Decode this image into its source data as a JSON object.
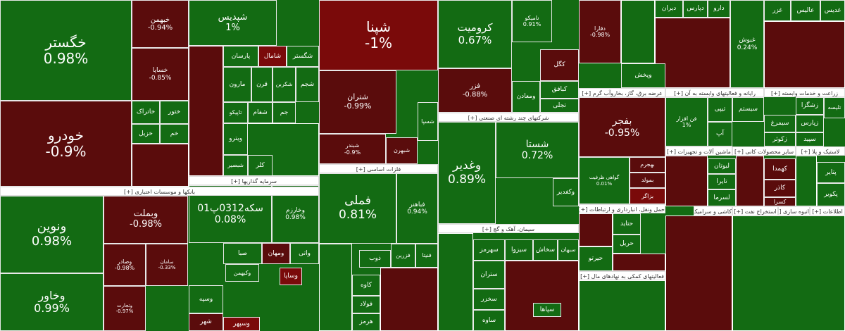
{
  "tiles": [
    {
      "label": "خگستر",
      "change": "0.98%",
      "color": "#136b13"
    },
    {
      "label": "خودرو",
      "change": "-0.9%",
      "color": "#5a0c0c"
    },
    {
      "label": "خبهمن",
      "change": "-0.94%",
      "color": "#5a0c0c"
    },
    {
      "label": "خساپا",
      "change": "-0.85%",
      "color": "#5a0c0c"
    },
    {
      "label": "خاتراک",
      "color": "#136b13"
    },
    {
      "label": "ختور",
      "color": "#136b13"
    },
    {
      "label": "خزیل",
      "color": "#136b13"
    },
    {
      "label": "خم",
      "color": "#136b13"
    },
    {
      "label": "ونوین",
      "change": "0.98%",
      "color": "#136b13"
    },
    {
      "label": "وخاور",
      "change": "0.99%",
      "color": "#136b13"
    },
    {
      "label": "وبملت",
      "change": "-0.98%",
      "color": "#5a0c0c"
    },
    {
      "label": "وصادر",
      "change": "-0.98%",
      "color": "#5a0c0c"
    },
    {
      "label": "سامان",
      "change": "-0.33%",
      "color": "#5a0c0c"
    },
    {
      "label": "وتجارت",
      "change": "-0.97%",
      "color": "#5a0c0c"
    },
    {
      "label": "شپدیس",
      "change": "1%",
      "color": "#136b13"
    },
    {
      "label": "پارسان",
      "color": "#136b13"
    },
    {
      "label": "شامال",
      "color": "#7a0a0a"
    },
    {
      "label": "شگستر",
      "color": "#136b13"
    },
    {
      "label": "مارون",
      "color": "#136b13"
    },
    {
      "label": "قرن",
      "color": "#136b13"
    },
    {
      "label": "شکربن",
      "color": "#136b13"
    },
    {
      "label": "شجم",
      "color": "#136b13"
    },
    {
      "label": "تاپیکو",
      "color": "#136b13"
    },
    {
      "label": "شغام",
      "color": "#136b13"
    },
    {
      "label": "جم",
      "color": "#136b13"
    },
    {
      "label": "ویترو",
      "color": "#136b13"
    },
    {
      "label": "شبصیر",
      "color": "#136b13"
    },
    {
      "label": "کلر",
      "color": "#136b13"
    },
    {
      "label": "سکه0312پ01",
      "change": "0.08%",
      "color": "#136b13"
    },
    {
      "label": "وخارزم",
      "change": "0.98%",
      "color": "#136b13"
    },
    {
      "label": "صبا",
      "color": "#136b13"
    },
    {
      "label": "ومهان",
      "color": "#5a0c0c"
    },
    {
      "label": "واتی",
      "color": "#136b13"
    },
    {
      "label": "وسپه",
      "color": "#136b13"
    },
    {
      "label": "شهر",
      "color": "#5a0c0c"
    },
    {
      "label": "وکبهمن",
      "color": "#136b13"
    },
    {
      "label": "وساپا",
      "color": "#7a0a0a"
    },
    {
      "label": "وسپهر",
      "color": "#7a0a0a"
    },
    {
      "label": "شپنا",
      "change": "-1%",
      "color": "#7a0a0a"
    },
    {
      "label": "شتران",
      "change": "-0.99%",
      "color": "#5a0c0c"
    },
    {
      "label": "شبندر",
      "change": "-0.9%",
      "color": "#5a0c0c"
    },
    {
      "label": "شبهرن",
      "color": "#5a0c0c"
    },
    {
      "label": "شسپا",
      "color": "#136b13"
    },
    {
      "label": "فملی",
      "change": "0.81%",
      "color": "#136b13"
    },
    {
      "label": "فباهنر",
      "change": "0.94%",
      "color": "#136b13"
    },
    {
      "label": "ذوب",
      "color": "#136b13"
    },
    {
      "label": "فزرین",
      "color": "#136b13"
    },
    {
      "label": "فنیتا",
      "color": "#136b13"
    },
    {
      "label": "کاوه",
      "color": "#136b13"
    },
    {
      "label": "فولاد",
      "color": "#136b13"
    },
    {
      "label": "هرمز",
      "color": "#136b13"
    },
    {
      "label": "کرومیت",
      "change": "0.67%",
      "color": "#136b13"
    },
    {
      "label": "نامیکو",
      "change": "0.91%",
      "color": "#136b13"
    },
    {
      "label": "فزر",
      "change": "-0.88%",
      "color": "#5a0c0c"
    },
    {
      "label": "کگل",
      "color": "#5a0c0c"
    },
    {
      "label": "کبافق",
      "color": "#136b13"
    },
    {
      "label": "تجلی",
      "color": "#136b13"
    },
    {
      "label": "ومعادن",
      "color": "#136b13"
    },
    {
      "label": "وغدیر",
      "change": "0.89%",
      "color": "#136b13"
    },
    {
      "label": "شستا",
      "change": "0.72%",
      "color": "#136b13"
    },
    {
      "label": "وکغدیر",
      "color": "#136b13"
    },
    {
      "label": "سهرمز",
      "color": "#136b13"
    },
    {
      "label": "سیزوا",
      "color": "#136b13"
    },
    {
      "label": "سخاش",
      "color": "#136b13"
    },
    {
      "label": "سبهان",
      "color": "#136b13"
    },
    {
      "label": "ستران",
      "color": "#136b13"
    },
    {
      "label": "سخزر",
      "color": "#136b13"
    },
    {
      "label": "ساوه",
      "color": "#136b13"
    },
    {
      "label": "سپاها",
      "color": "#136b13"
    },
    {
      "label": "دقارا",
      "change": "-0.98%",
      "color": "#5a0c0c"
    },
    {
      "label": "وپخش",
      "color": "#136b13"
    },
    {
      "label": "بفجر",
      "change": "-0.95%",
      "color": "#5a0c0c"
    },
    {
      "label": "گواهی ظرفیت",
      "change": "0.01%",
      "color": "#136b13"
    },
    {
      "label": "بهجرم",
      "color": "#5a0c0c"
    },
    {
      "label": "بمولد",
      "color": "#5a0c0c"
    },
    {
      "label": "بزاگر",
      "color": "#7a0a0a"
    },
    {
      "label": "حتاید",
      "color": "#136b13"
    },
    {
      "label": "حریل",
      "color": "#136b13"
    },
    {
      "label": "حیرتو",
      "color": "#136b13"
    },
    {
      "label": "دیران",
      "color": "#136b13"
    },
    {
      "label": "دپارس",
      "color": "#136b13"
    },
    {
      "label": "دارو",
      "color": "#136b13"
    },
    {
      "label": "فن افزار",
      "change": "1%",
      "color": "#136b13"
    },
    {
      "label": "تیپی",
      "color": "#136b13"
    },
    {
      "label": "سیستم",
      "color": "#136b13"
    },
    {
      "label": "آپ",
      "color": "#136b13"
    },
    {
      "label": "لبوتان",
      "color": "#136b13"
    },
    {
      "label": "تایرا",
      "color": "#136b13"
    },
    {
      "label": "لسرما",
      "color": "#136b13"
    },
    {
      "label": "غبوش",
      "change": "0.24%",
      "color": "#136b13"
    },
    {
      "label": "غزر",
      "color": "#136b13"
    },
    {
      "label": "عالیس",
      "color": "#136b13"
    },
    {
      "label": "غدیس",
      "color": "#136b13"
    },
    {
      "label": "زشگزا",
      "color": "#136b13"
    },
    {
      "label": "زپارس",
      "color": "#136b13"
    },
    {
      "label": "تلیسه",
      "color": "#136b13"
    },
    {
      "label": "سیمرغ",
      "color": "#136b13"
    },
    {
      "label": "زکوثر",
      "color": "#136b13"
    },
    {
      "label": "سپید",
      "color": "#136b13"
    },
    {
      "label": "کهمدا",
      "color": "#5a0c0c"
    },
    {
      "label": "پتایر",
      "color": "#136b13"
    },
    {
      "label": "کاذر",
      "color": "#5a0c0c"
    },
    {
      "label": "پکویر",
      "color": "#136b13"
    },
    {
      "label": "کسرا",
      "color": "#5a0c0c"
    }
  ],
  "sectors": [
    "بانکها و موسسات اعتباری [+]",
    "سرمایه گذاریها [+]",
    "فلزات اساسی [+]",
    "شرکتهاي چند رشته اي صنعتي [+]",
    "سیمان، آهک و گچ [+]",
    "عرضه برق، گاز، بخاروآب گرم [+]",
    "حمل ونقل، انبارداری و ارتباطات [+]",
    "فعالیتهای کمکی به نهادهای مال [+]",
    "رایانه و فعالیتهای وابسته به آن [+]",
    "زراعت و خدمات وابسته [+]",
    "ماشین آلات و تجهیزات [+]",
    "سایر محصولات کانی [+]",
    "لاستیک و پلا [+]",
    "کاشی و سرامیک [+]",
    "استخراج نفت [+]",
    "انبوه سازی [+]",
    "اطلاعات [+]"
  ]
}
